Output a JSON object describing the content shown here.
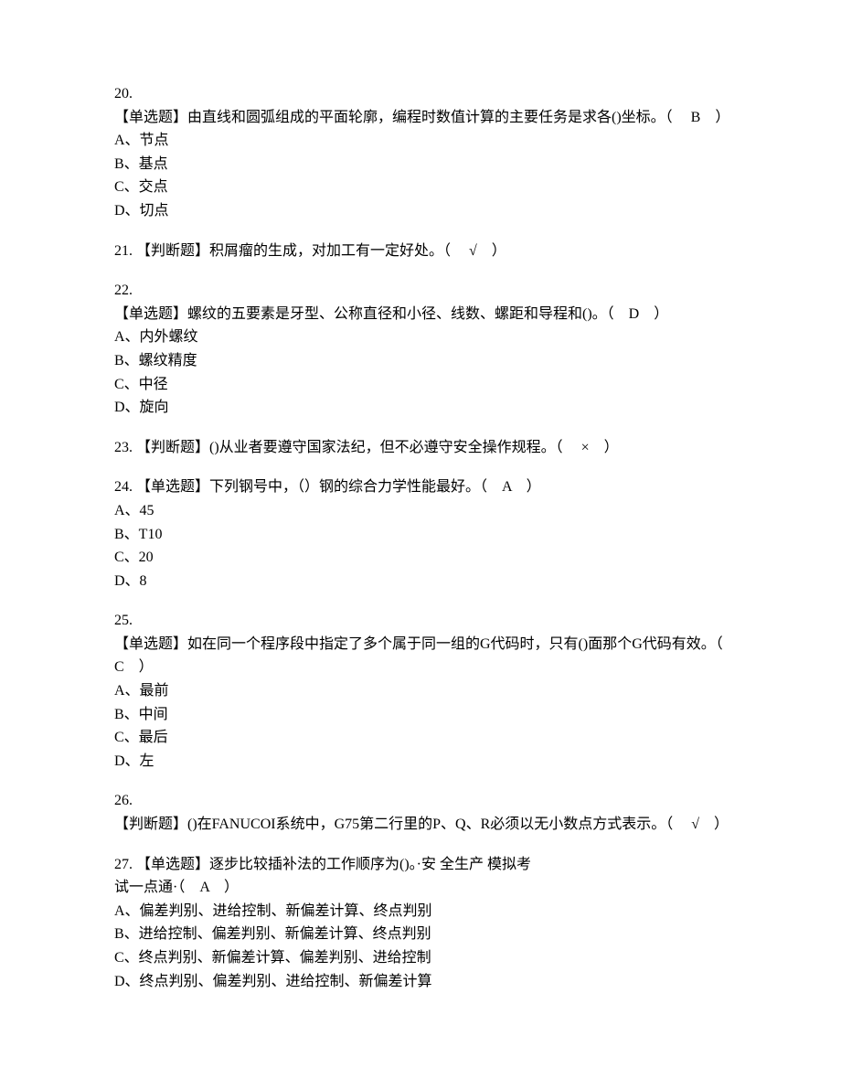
{
  "q20": {
    "num": "20.",
    "text": "【单选题】由直线和圆弧组成的平面轮廓，编程时数值计算的主要任务是求各()坐标。（　 B　）",
    "options": {
      "a": "A、节点",
      "b": "B、基点",
      "c": "C、交点",
      "d": "D、切点"
    }
  },
  "q21": {
    "text": "21. 【判断题】积屑瘤的生成，对加工有一定好处。（　 √　）"
  },
  "q22": {
    "num": "22.",
    "text": "【单选题】螺纹的五要素是牙型、公称直径和小径、线数、螺距和导程和()。（　D　）",
    "options": {
      "a": "A、内外螺纹",
      "b": "B、螺纹精度",
      "c": "C、中径",
      "d": "D、旋向"
    }
  },
  "q23": {
    "text": "23. 【判断题】()从业者要遵守国家法纪，但不必遵守安全操作规程。（　 ×　）"
  },
  "q24": {
    "text": "24. 【单选题】下列钢号中，（）钢的综合力学性能最好。（　A　）",
    "options": {
      "a": "A、45",
      "b": "B、T10",
      "c": "C、20",
      "d": "D、8"
    }
  },
  "q25": {
    "num": "25.",
    "text": "【单选题】如在同一个程序段中指定了多个属于同一组的G代码时，只有()面那个G代码有效。（　C　）",
    "options": {
      "a": "A、最前",
      "b": "B、中间",
      "c": "C、最后",
      "d": "D、左"
    }
  },
  "q26": {
    "num": "26.",
    "text": "【判断题】()在FANUCOI系统中，G75第二行里的P、Q、R必须以无小数点方式表示。（　 √　）"
  },
  "q27": {
    "text1": "27. 【单选题】逐步比较插补法的工作顺序为()。·安  全生产 模拟考",
    "text2": "试一点通·（　A　）",
    "options": {
      "a": "A、偏差判别、进给控制、新偏差计算、终点判别",
      "b": "B、进给控制、偏差判别、新偏差计算、终点判别",
      "c": "C、终点判别、新偏差计算、偏差判别、进给控制",
      "d": "D、终点判别、偏差判别、进给控制、新偏差计算"
    }
  }
}
